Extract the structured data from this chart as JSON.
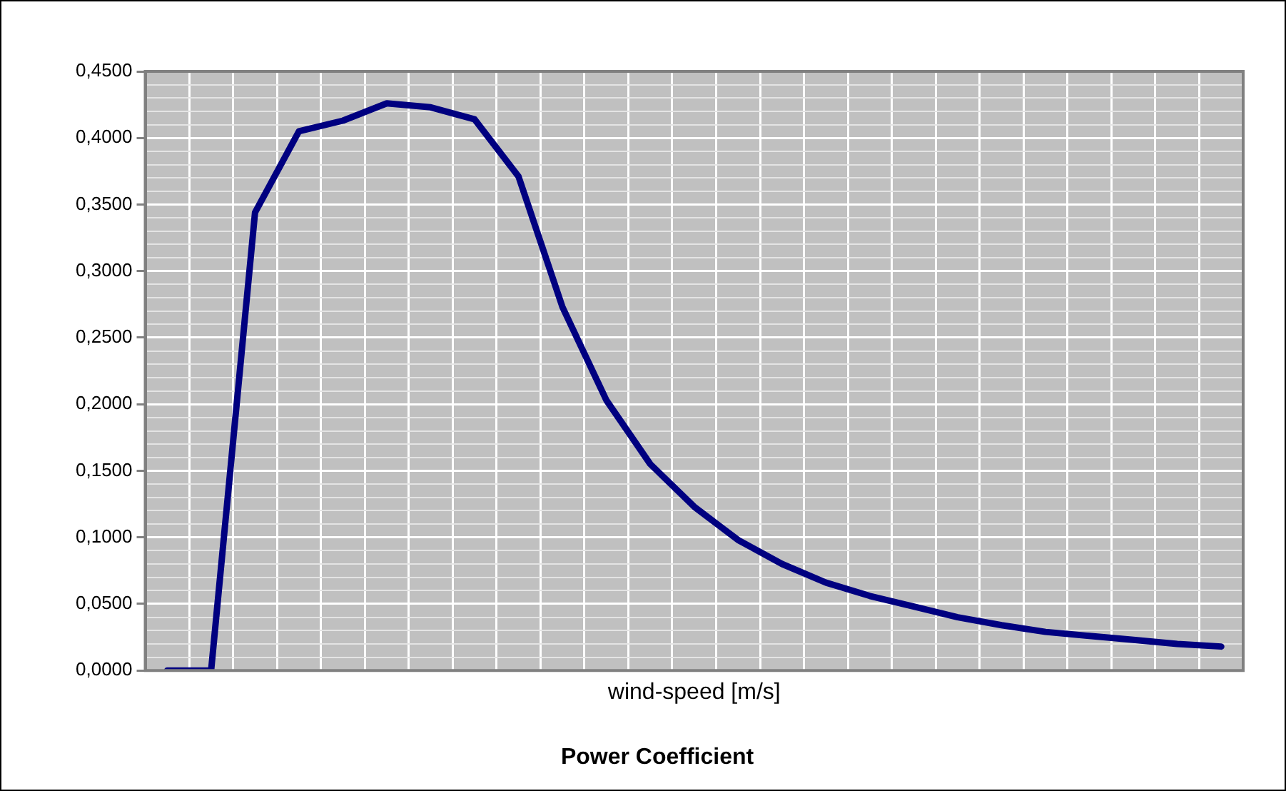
{
  "chart_data": {
    "type": "line",
    "title": "Power Coefficient",
    "xlabel": "wind-speed [m/s]",
    "categories": [
      null,
      null,
      null,
      null,
      null,
      null,
      null,
      null,
      null,
      null,
      null,
      null,
      null,
      null,
      null,
      null,
      null,
      null,
      null,
      null,
      null,
      null,
      null,
      null,
      null
    ],
    "series": [
      {
        "color": "#000080",
        "values": [
          0,
          0,
          0.344,
          0.405,
          0.413,
          0.426,
          0.423,
          0.414,
          0.371,
          0.273,
          0.203,
          0.155,
          0.123,
          0.098,
          0.08,
          0.066,
          0.056,
          0.048,
          0.04,
          0.034,
          0.029,
          0.026,
          0.023,
          0.02,
          0.018
        ]
      }
    ],
    "ylim": [
      0,
      0.45
    ],
    "yticks": [
      {
        "value": 0,
        "label": "0,0000"
      },
      {
        "value": 0.01,
        "label": null
      },
      {
        "value": 0.02,
        "label": null
      },
      {
        "value": 0.03,
        "label": null
      },
      {
        "value": 0.04,
        "label": null
      },
      {
        "value": 0.05,
        "label": "0,0500"
      },
      {
        "value": 0.06,
        "label": null
      },
      {
        "value": 0.07,
        "label": null
      },
      {
        "value": 0.08,
        "label": null
      },
      {
        "value": 0.09,
        "label": null
      },
      {
        "value": 0.1,
        "label": "0,1000"
      },
      {
        "value": 0.11,
        "label": null
      },
      {
        "value": 0.12,
        "label": null
      },
      {
        "value": 0.13,
        "label": null
      },
      {
        "value": 0.14,
        "label": null
      },
      {
        "value": 0.15,
        "label": "0,1500"
      },
      {
        "value": 0.16,
        "label": null
      },
      {
        "value": 0.17,
        "label": null
      },
      {
        "value": 0.18,
        "label": null
      },
      {
        "value": 0.19,
        "label": null
      },
      {
        "value": 0.2,
        "label": "0,2000"
      },
      {
        "value": 0.21,
        "label": null
      },
      {
        "value": 0.22,
        "label": null
      },
      {
        "value": 0.23,
        "label": null
      },
      {
        "value": 0.24,
        "label": null
      },
      {
        "value": 0.25,
        "label": "0,2500"
      },
      {
        "value": 0.26,
        "label": null
      },
      {
        "value": 0.27,
        "label": null
      },
      {
        "value": 0.28,
        "label": null
      },
      {
        "value": 0.29,
        "label": null
      },
      {
        "value": 0.3,
        "label": "0,3000"
      },
      {
        "value": 0.31,
        "label": null
      },
      {
        "value": 0.32,
        "label": null
      },
      {
        "value": 0.33,
        "label": null
      },
      {
        "value": 0.34,
        "label": null
      },
      {
        "value": 0.35,
        "label": "0,3500"
      },
      {
        "value": 0.36,
        "label": null
      },
      {
        "value": 0.37,
        "label": null
      },
      {
        "value": 0.38,
        "label": null
      },
      {
        "value": 0.39,
        "label": null
      },
      {
        "value": 0.4,
        "label": "0,4000"
      },
      {
        "value": 0.41,
        "label": null
      },
      {
        "value": 0.42,
        "label": null
      },
      {
        "value": 0.43,
        "label": null
      },
      {
        "value": 0.44,
        "label": null
      },
      {
        "value": 0.45,
        "label": "0,4500"
      }
    ],
    "grid": true,
    "legend": false,
    "tick_labels": "y",
    "marker": "none",
    "line_style": "solid"
  }
}
